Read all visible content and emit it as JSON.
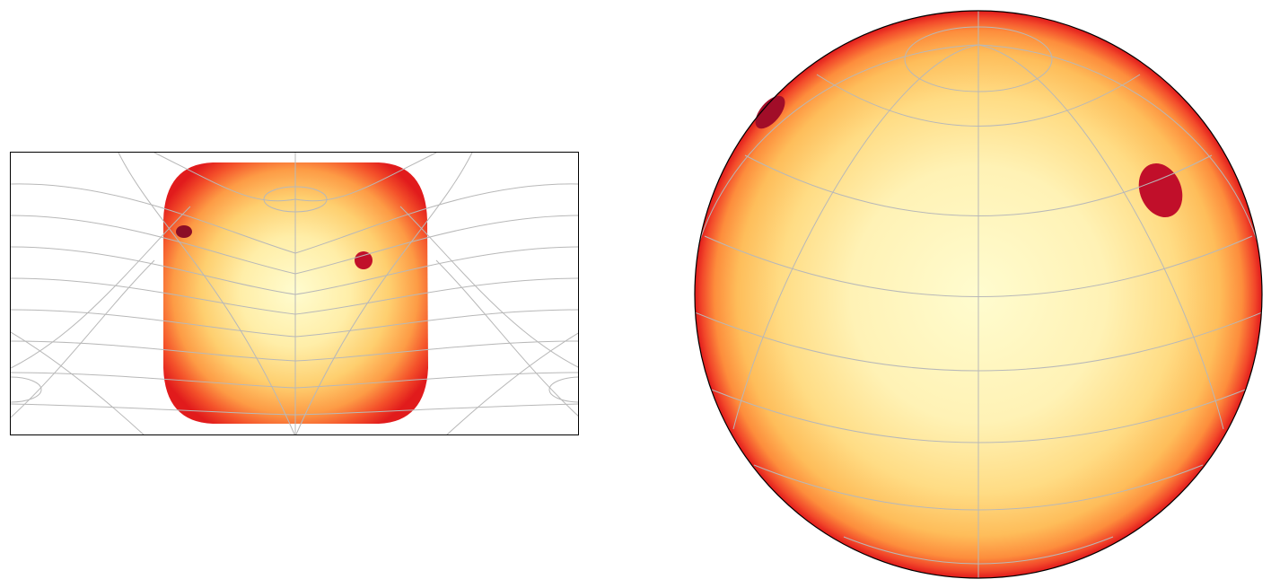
{
  "figure": {
    "panels": [
      {
        "id": "map",
        "kind": "flat-map-projection",
        "frame": "rectangular"
      },
      {
        "id": "globe",
        "kind": "orthographic-sphere",
        "frame": "circular"
      }
    ],
    "colormap": [
      "#fffccf",
      "#ffe79a",
      "#fec15c",
      "#fd8d3c",
      "#f03b20",
      "#d7191c"
    ],
    "spot_colors": [
      "#c10f2a",
      "#8c0d26"
    ],
    "grid_color": "#b8b8b8",
    "spots": [
      {
        "name": "small-dark-spot",
        "visible_in": [
          "map",
          "globe"
        ]
      },
      {
        "name": "large-red-spot",
        "visible_in": [
          "map",
          "globe"
        ]
      }
    ]
  }
}
